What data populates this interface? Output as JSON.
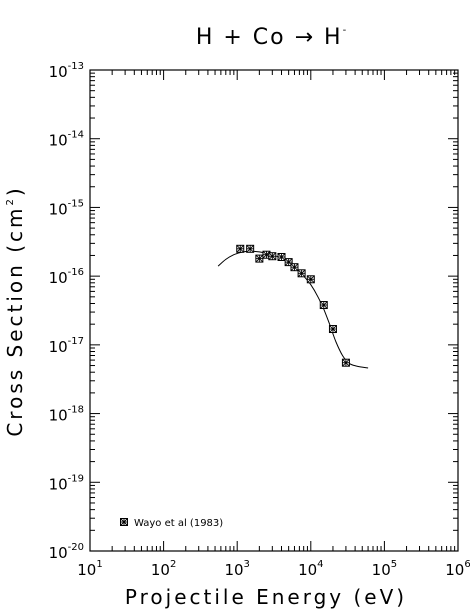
{
  "chart_data": {
    "type": "scatter",
    "title": {
      "base": "H + Co → H",
      "sup": "-"
    },
    "xlabel": "Projectile Energy (eV)",
    "ylabel": {
      "base": "Cross Section (cm",
      "sup": "2",
      "end": ")"
    },
    "x_scale": "log",
    "y_scale": "log",
    "xlim": [
      10,
      1000000
    ],
    "ylim": [
      1e-20,
      1e-13
    ],
    "x_ticks": [
      {
        "value": 10,
        "base": "10",
        "exp": "1"
      },
      {
        "value": 100,
        "base": "10",
        "exp": "2"
      },
      {
        "value": 1000,
        "base": "10",
        "exp": "3"
      },
      {
        "value": 10000,
        "base": "10",
        "exp": "4"
      },
      {
        "value": 100000,
        "base": "10",
        "exp": "5"
      },
      {
        "value": 1000000,
        "base": "10",
        "exp": "6"
      }
    ],
    "y_ticks": [
      {
        "value": 1e-13,
        "base": "10",
        "exp": "-13"
      },
      {
        "value": 1e-14,
        "base": "10",
        "exp": "-14"
      },
      {
        "value": 1e-15,
        "base": "10",
        "exp": "-15"
      },
      {
        "value": 1e-16,
        "base": "10",
        "exp": "-16"
      },
      {
        "value": 1e-17,
        "base": "10",
        "exp": "-17"
      },
      {
        "value": 1e-18,
        "base": "10",
        "exp": "-18"
      },
      {
        "value": 1e-19,
        "base": "10",
        "exp": "-19"
      },
      {
        "value": 1e-20,
        "base": "10",
        "exp": "-20"
      }
    ],
    "legend": {
      "placement": "bottom-left",
      "label": "Wayo et al (1983)",
      "marker": "square-cross"
    },
    "series": [
      {
        "name": "Wayo et al (1983)",
        "marker": "square-cross",
        "points": [
          {
            "x": 1100,
            "y": 2.5e-16
          },
          {
            "x": 1500,
            "y": 2.5e-16
          },
          {
            "x": 2000,
            "y": 1.8e-16
          },
          {
            "x": 2500,
            "y": 2.05e-16
          },
          {
            "x": 3000,
            "y": 1.95e-16
          },
          {
            "x": 4000,
            "y": 1.9e-16
          },
          {
            "x": 5000,
            "y": 1.6e-16
          },
          {
            "x": 6000,
            "y": 1.35e-16
          },
          {
            "x": 7500,
            "y": 1.1e-16
          },
          {
            "x": 10000,
            "y": 9e-17
          },
          {
            "x": 15000,
            "y": 3.8e-17
          },
          {
            "x": 20000,
            "y": 1.7e-17
          },
          {
            "x": 30000,
            "y": 5.5e-18
          }
        ]
      }
    ],
    "fit_curve": {
      "points": [
        {
          "x": 550,
          "y": 1.4e-16
        },
        {
          "x": 700,
          "y": 1.75e-16
        },
        {
          "x": 900,
          "y": 2.05e-16
        },
        {
          "x": 1200,
          "y": 2.25e-16
        },
        {
          "x": 1600,
          "y": 2.3e-16
        },
        {
          "x": 2000,
          "y": 2.25e-16
        },
        {
          "x": 3000,
          "y": 2.05e-16
        },
        {
          "x": 4000,
          "y": 1.8e-16
        },
        {
          "x": 5000,
          "y": 1.55e-16
        },
        {
          "x": 6500,
          "y": 1.25e-16
        },
        {
          "x": 8000,
          "y": 1e-16
        },
        {
          "x": 10000,
          "y": 7.5e-17
        },
        {
          "x": 12500,
          "y": 5e-17
        },
        {
          "x": 15000,
          "y": 3.3e-17
        },
        {
          "x": 18000,
          "y": 2e-17
        },
        {
          "x": 22000,
          "y": 1.1e-17
        },
        {
          "x": 27000,
          "y": 7e-18
        },
        {
          "x": 33000,
          "y": 5.4e-18
        },
        {
          "x": 42000,
          "y": 4.9e-18
        },
        {
          "x": 60000,
          "y": 4.6e-18
        }
      ]
    }
  }
}
